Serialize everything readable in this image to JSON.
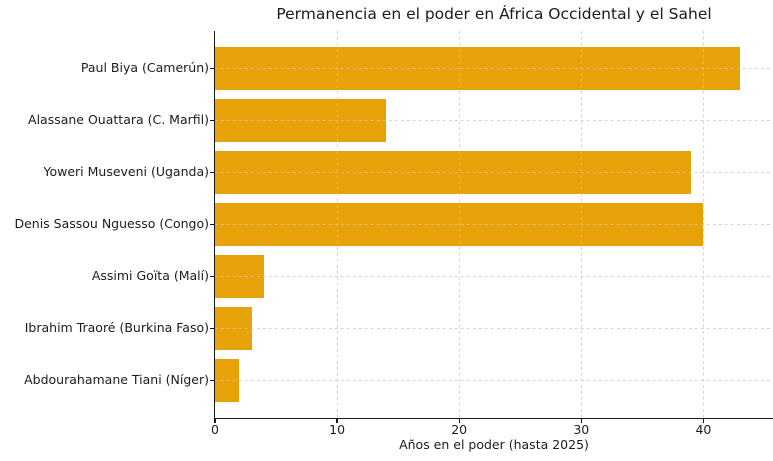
{
  "chart_data": {
    "type": "bar",
    "orientation": "horizontal",
    "title": "Permanencia en el poder en África Occidental y el Sahel",
    "xlabel": "Años en el poder (hasta 2025)",
    "ylabel": "",
    "categories": [
      "Paul Biya (Camerún)",
      "Alassane Ouattara (C. Marfil)",
      "Yoweri Museveni (Uganda)",
      "Denis Sassou Nguesso (Congo)",
      "Assimi Goïta (Malí)",
      "Ibrahim Traoré (Burkina Faso)",
      "Abdourahamane Tiani (Níger)"
    ],
    "values": [
      43,
      14,
      39,
      40,
      4,
      3,
      2
    ],
    "xticks": [
      0,
      10,
      20,
      30,
      40
    ],
    "xtick_labels": [
      "0",
      "10",
      "20",
      "30",
      "40"
    ],
    "xlim": [
      0,
      45.7
    ],
    "grid": true,
    "grid_style": "dashed",
    "legend": false,
    "colors": {
      "bar": "#E6A208",
      "grid": "#CCCCCC",
      "axis": "#1A1A1A",
      "text": "#1C1C1C",
      "background": "#FFFFFF"
    }
  }
}
